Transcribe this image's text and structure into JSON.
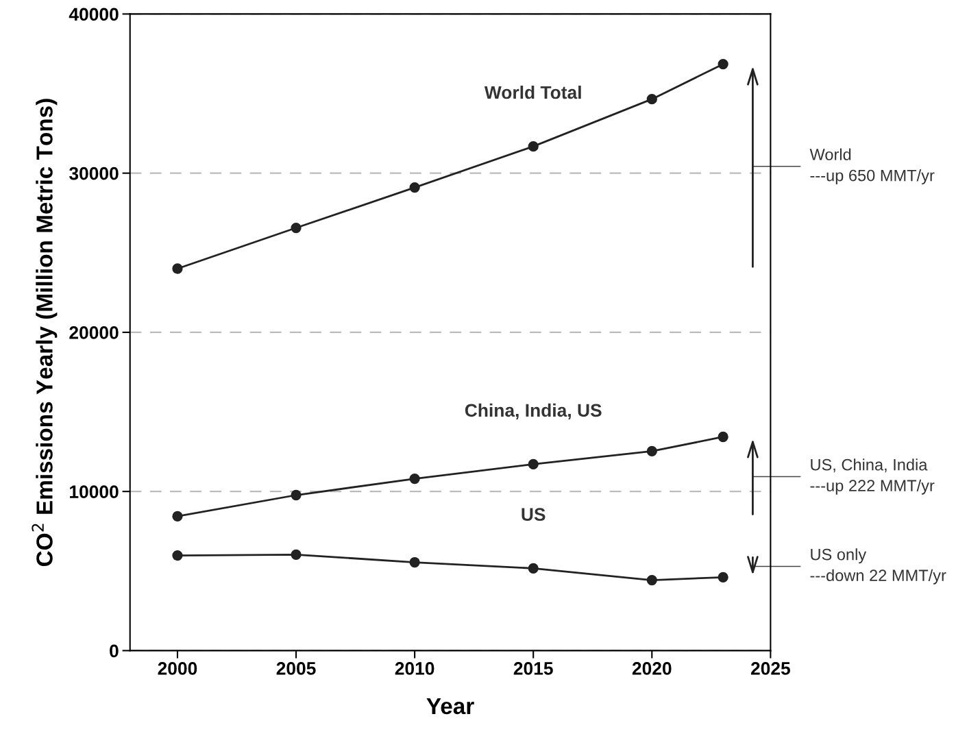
{
  "chart_data": {
    "type": "line",
    "xlabel": "Year",
    "ylabel": "CO$^{2}$ Emissions Yearly (Million Metric Tons)",
    "x": [
      2000,
      2005,
      2010,
      2015,
      2020,
      2023
    ],
    "series": [
      {
        "name": "World Total",
        "color": "#222222",
        "values": [
          24000,
          26560,
          29100,
          31680,
          34650,
          36850
        ]
      },
      {
        "name": "China, India, US",
        "color": "#222222",
        "values": [
          8440,
          9770,
          10800,
          11710,
          12530,
          13430
        ]
      },
      {
        "name": "US",
        "color": "#222222",
        "values": [
          5980,
          6030,
          5550,
          5170,
          4430,
          4610
        ]
      }
    ],
    "annotations": [
      "World\n---up 650 MMT/yr",
      "US, China, India\n---up 222 MMT/yr",
      "US only\n---down 22 MMT/yr"
    ],
    "xlim": [
      1998,
      2025
    ],
    "xticks": [
      2000,
      2005,
      2010,
      2015,
      2020,
      2025
    ],
    "ylim": [
      0,
      40000
    ],
    "yticks": [
      0,
      10000,
      20000,
      30000,
      40000
    ],
    "grid": "y",
    "marker": "circle",
    "line_style": "solid",
    "legend": false
  }
}
